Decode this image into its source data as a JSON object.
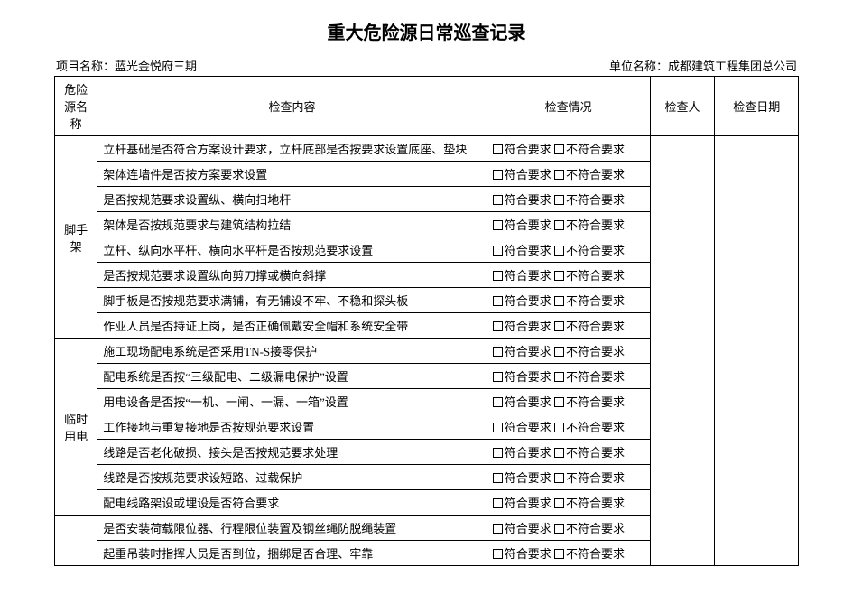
{
  "title": "重大危险源日常巡查记录",
  "meta": {
    "projectLabel": "项目名称：",
    "projectName": "蓝光金悦府三期",
    "unitLabel": "单位名称：",
    "unitName": "成都建筑工程集团总公司"
  },
  "headers": {
    "source": "危险源名称",
    "content": "检查内容",
    "status": "检查情况",
    "person": "检查人",
    "date": "检查日期"
  },
  "statusLabels": {
    "ok": "符合要求",
    "bad": "不符合要求"
  },
  "sections": [
    {
      "name": "脚手架",
      "items": [
        "立杆基础是否符合方案设计要求，立杆底部是否按要求设置底座、垫块",
        "架体连墙件是否按方案要求设置",
        "是否按规范要求设置纵、横向扫地杆",
        "架体是否按规范要求与建筑结构拉结",
        "立杆、纵向水平杆、横向水平杆是否按规范要求设置",
        "是否按规范要求设置纵向剪刀撑或横向斜撑",
        "脚手板是否按规范要求满铺，有无铺设不牢、不稳和探头板",
        "作业人员是否持证上岗，是否正确佩戴安全帽和系统安全带"
      ]
    },
    {
      "name": "临时用电",
      "items": [
        "施工现场配电系统是否采用TN-S接零保护",
        "配电系统是否按“三级配电、二级漏电保护”设置",
        "用电设备是否按“一机、一闸、一漏、一箱”设置",
        "工作接地与重复接地是否按规范要求设置",
        "线路是否老化破损、接头是否按规范要求处理",
        "线路是否按规范要求设短路、过载保护",
        "配电线路架设或埋设是否符合要求"
      ]
    },
    {
      "name": "",
      "items": [
        "是否安装荷载限位器、行程限位装置及钢丝绳防脱绳装置",
        "起重吊装时指挥人员是否到位，捆绑是否合理、牢靠"
      ]
    }
  ],
  "colors": {
    "border": "#000000",
    "background": "#ffffff",
    "text": "#000000"
  },
  "fontSizes": {
    "title": 20,
    "body": 13
  }
}
